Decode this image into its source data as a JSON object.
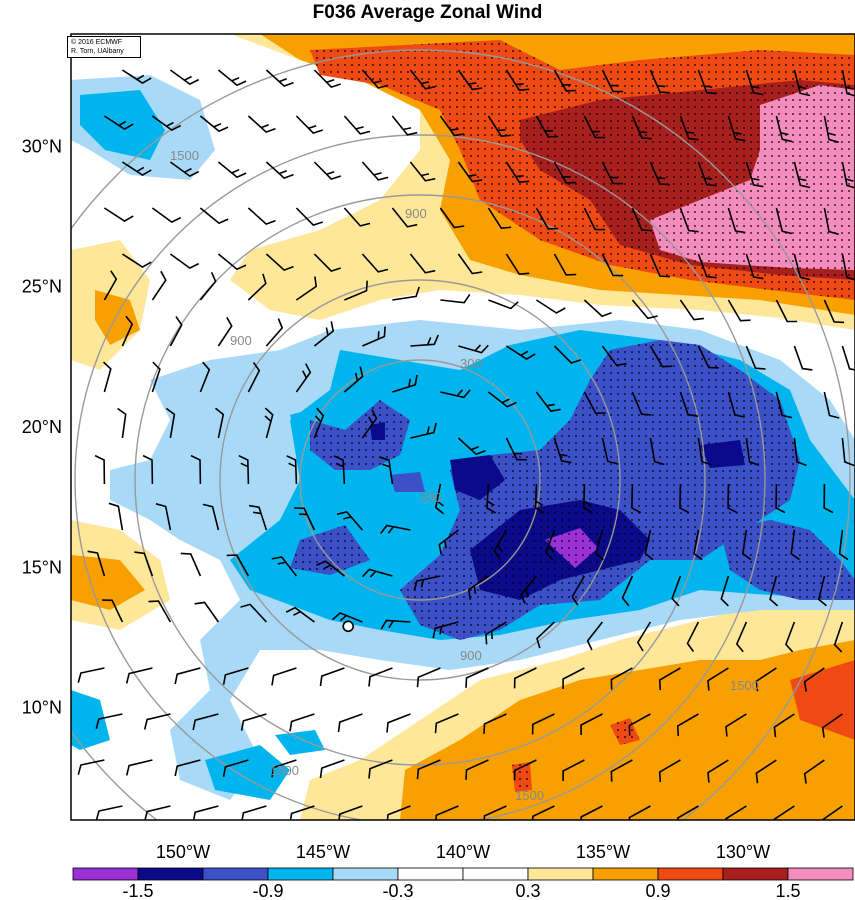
{
  "title": "F036 Average Zonal Wind",
  "credit": {
    "line1": "© 2016 ECMWF",
    "line2": "R. Torn, UAlbany"
  },
  "map": {
    "lat_labels": [
      {
        "text": "30°N",
        "lat": 30
      },
      {
        "text": "25°N",
        "lat": 25
      },
      {
        "text": "20°N",
        "lat": 20
      },
      {
        "text": "15°N",
        "lat": 15
      },
      {
        "text": "10°N",
        "lat": 10
      }
    ],
    "lon_labels": [
      {
        "text": "150°W",
        "lon": -150
      },
      {
        "text": "145°W",
        "lon": -145
      },
      {
        "text": "140°W",
        "lon": -140
      },
      {
        "text": "135°W",
        "lon": -135
      },
      {
        "text": "130°W",
        "lon": -130
      }
    ],
    "extent": {
      "lon_min": -154,
      "lon_max": -126,
      "lat_min": 6,
      "lat_max": 34
    },
    "storm_center": {
      "lon": -144.1,
      "lat": 12.9
    },
    "range_ring_labels": [
      "300",
      "900",
      "1500"
    ]
  },
  "colorbar": {
    "colors": [
      "#9b30d6",
      "#0a0a8a",
      "#3c50c8",
      "#00b4ee",
      "#a8daf8",
      "#ffffff",
      "#ffffff",
      "#ffe79a",
      "#f7a000",
      "#f04a14",
      "#a8201e",
      "#f58cbe"
    ],
    "tick_labels": [
      "-1.5",
      "-0.9",
      "-0.3",
      "0.3",
      "0.9",
      "1.5"
    ]
  }
}
